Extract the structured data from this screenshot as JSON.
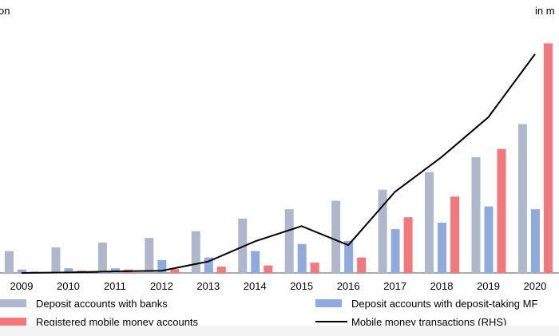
{
  "chart_data": {
    "type": "bar",
    "left_unit_label": "on",
    "right_unit_label": "in m",
    "categories": [
      "2009",
      "2010",
      "2011",
      "2012",
      "2013",
      "2014",
      "2015",
      "2016",
      "2017",
      "2018",
      "2019",
      "2020"
    ],
    "series": [
      {
        "name": "Deposit accounts with banks",
        "kind": "bar",
        "axis": "left",
        "color": "#aeb8cc",
        "values": [
          8.5,
          9.9,
          11.8,
          13.6,
          16.2,
          21.1,
          24.7,
          28.0,
          32.3,
          39.1,
          44.9,
          57.7
        ]
      },
      {
        "name": "Deposit accounts with deposit-taking MF",
        "kind": "bar",
        "axis": "left",
        "color": "#8faadc",
        "values": [
          1.3,
          1.8,
          1.8,
          5.0,
          6.0,
          8.5,
          11.2,
          12.4,
          17.0,
          19.5,
          25.8,
          24.7
        ]
      },
      {
        "name": "Registered mobile money accounts",
        "kind": "bar",
        "axis": "left",
        "color": "#f4777b",
        "values": [
          0.5,
          0.9,
          1.3,
          1.5,
          2.5,
          2.9,
          4.0,
          6.0,
          21.6,
          29.6,
          48.1,
          89.0
        ]
      },
      {
        "name": "Mobile money transactions (RHS)",
        "kind": "line",
        "axis": "right",
        "color": "#000000",
        "values": [
          0.0,
          0.1,
          0.3,
          0.4,
          2.1,
          5.8,
          8.6,
          5.1,
          14.9,
          21.3,
          28.6,
          40.2
        ]
      }
    ],
    "ylim_left": [
      0,
      95
    ],
    "ylim_right": [
      0,
      45
    ],
    "grid": false,
    "legend_position": "bottom"
  }
}
